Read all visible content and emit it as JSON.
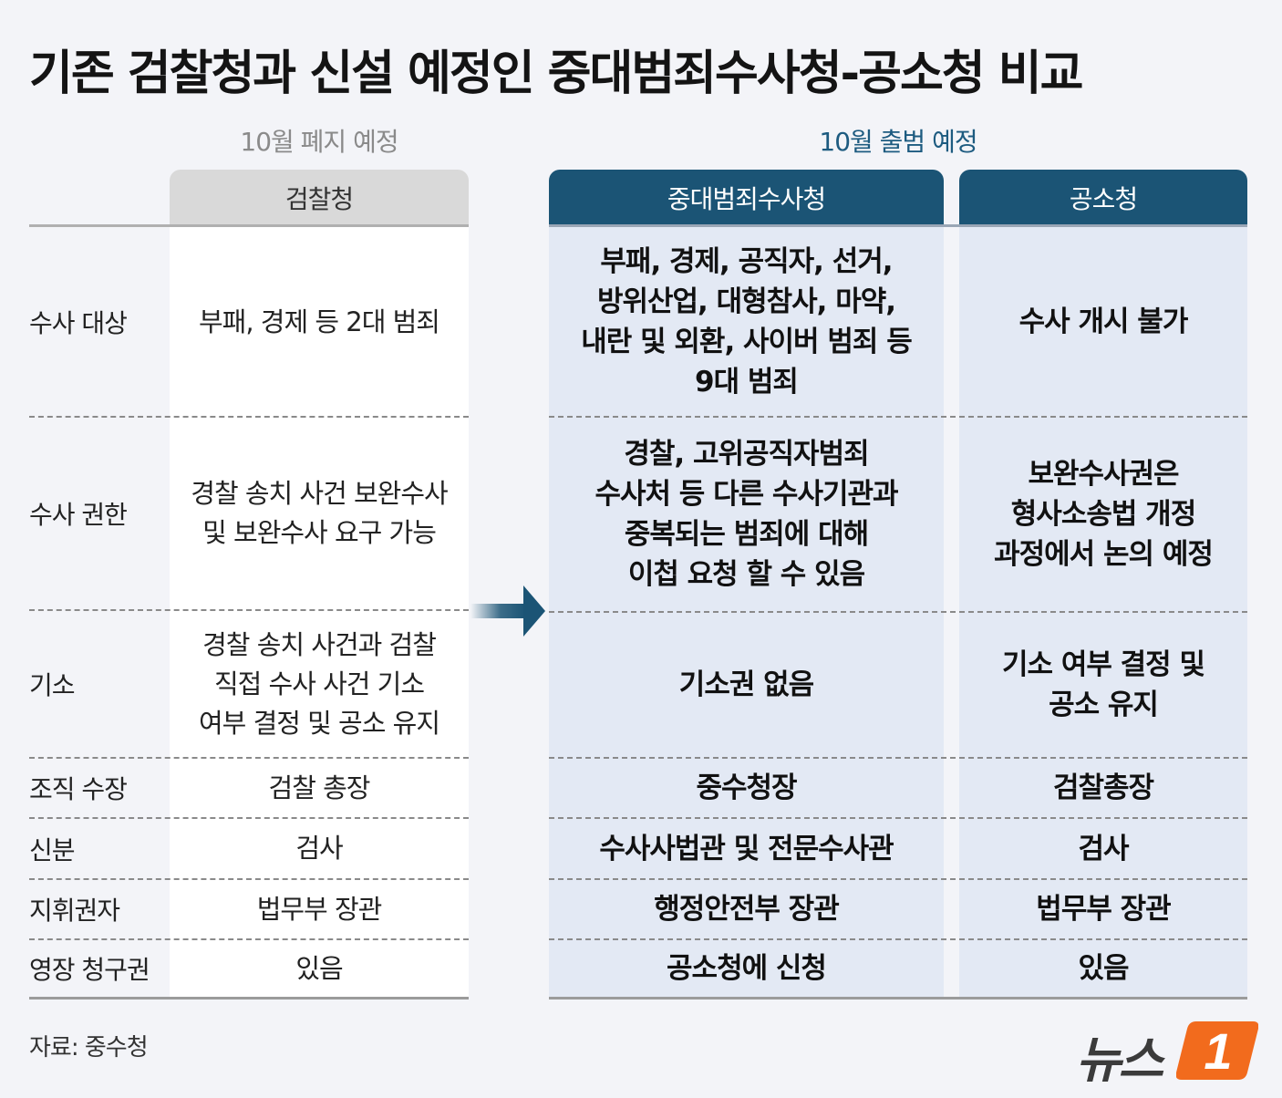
{
  "title": "기존 검찰청과 신설 예정인 중대범죄수사청-공소청 비교",
  "labels": {
    "old_status": "10월 폐지 예정",
    "new_status": "10월 출범 예정"
  },
  "columns": {
    "old": "검찰청",
    "serious_crime": "중대범죄수사청",
    "prosecution": "공소청"
  },
  "rows": [
    {
      "label": "수사 대상",
      "old": "부패, 경제 등 2대 범죄",
      "serious_crime": "부패, 경제, 공직자, 선거,\n방위산업, 대형참사, 마약,\n내란 및 외환, 사이버 범죄 등\n9대 범죄",
      "prosecution": "수사 개시 불가"
    },
    {
      "label": "수사 권한",
      "old": "경찰 송치 사건 보완수사\n및 보완수사 요구 가능",
      "serious_crime": "경찰, 고위공직자범죄\n수사처 등 다른 수사기관과\n중복되는 범죄에 대해\n이첩 요청 할 수 있음",
      "prosecution": "보완수사권은\n형사소송법 개정\n과정에서 논의 예정"
    },
    {
      "label": "기소",
      "old": "경찰 송치 사건과 검찰\n직접 수사 사건 기소\n여부 결정 및 공소 유지",
      "serious_crime": "기소권 없음",
      "prosecution": "기소 여부 결정 및\n공소 유지"
    },
    {
      "label": "조직 수장",
      "old": "검찰 총장",
      "serious_crime": "중수청장",
      "prosecution": "검찰총장"
    },
    {
      "label": "신분",
      "old": "검사",
      "serious_crime": "수사사법관 및 전문수사관",
      "prosecution": "검사"
    },
    {
      "label": "지휘권자",
      "old": "법무부 장관",
      "serious_crime": "행정안전부 장관",
      "prosecution": "법무부 장관"
    },
    {
      "label": "영장 청구권",
      "old": "있음",
      "serious_crime": "공소청에 신청",
      "prosecution": "있음"
    }
  ],
  "source": "자료: 중수청",
  "logo": {
    "text": "뉴스",
    "mark": "1"
  },
  "icons": {
    "arrow": "arrow-right-icon"
  },
  "colors": {
    "accent": "#1b5475",
    "new_column_bg": "#e3e9f4",
    "old_header_bg": "#d9d9d9",
    "logo_orange": "#f26b1d"
  }
}
